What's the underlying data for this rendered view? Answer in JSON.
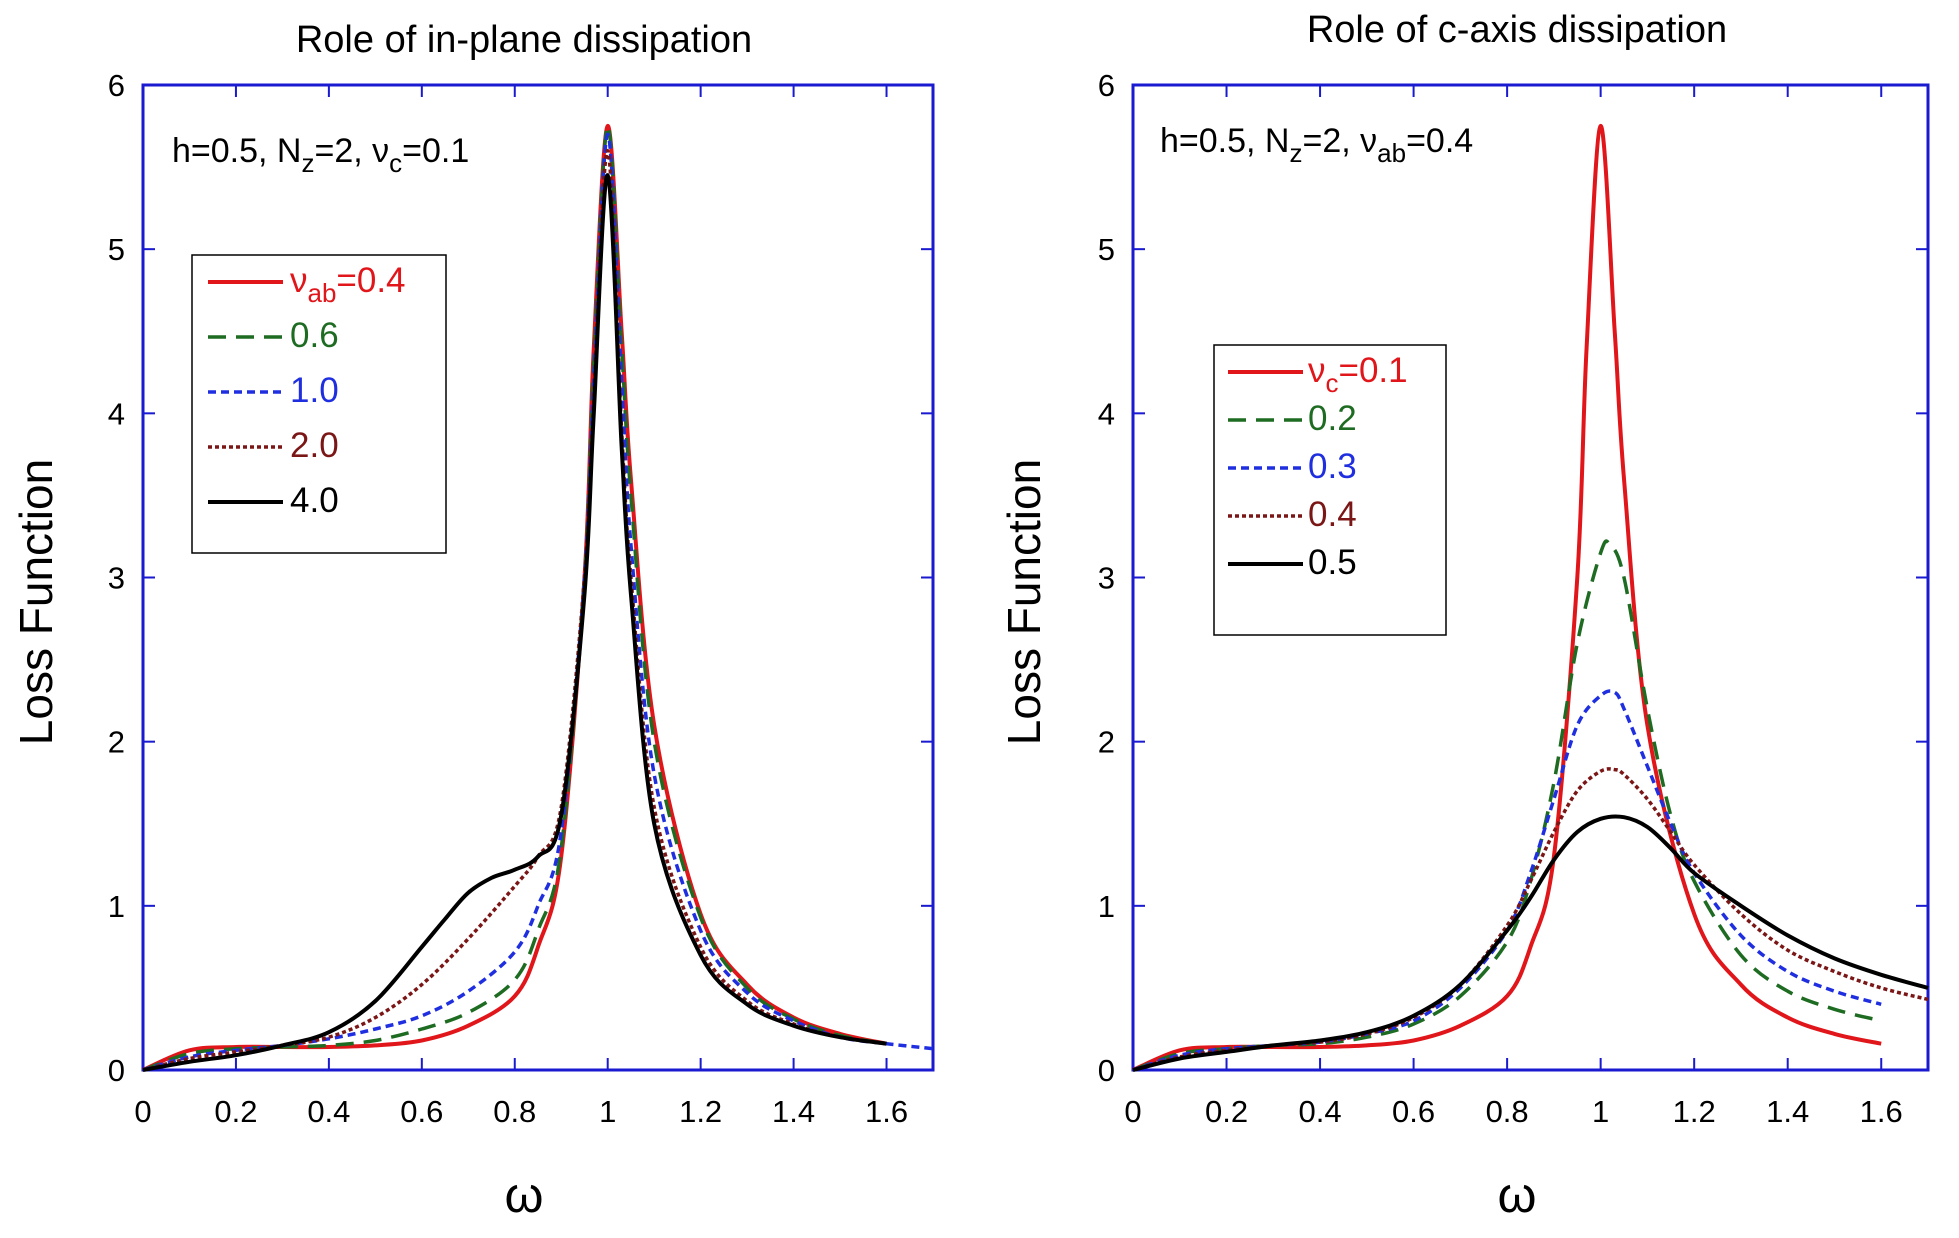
{
  "chart_data": [
    {
      "type": "line",
      "title": "Role of in-plane dissipation",
      "xlabel": "ω",
      "ylabel": "Loss Function",
      "xlim": [
        0,
        1.7
      ],
      "ylim": [
        0,
        6
      ],
      "xticks": [
        "0",
        "0.2",
        "0.4",
        "0.6",
        "0.8",
        "1",
        "1.2",
        "1.4",
        "1.6"
      ],
      "yticks": [
        "0",
        "1",
        "2",
        "3",
        "4",
        "5",
        "6"
      ],
      "annotation": {
        "h": "h=0.5, N",
        "nsub": "z",
        "mid": "=2, ",
        "nu": "ν",
        "nusub": "c",
        "tail": "=0.1"
      },
      "legend_prefix": {
        "nu": "ν",
        "sub": "ab",
        "eq": "="
      },
      "series": [
        {
          "name": "0.4",
          "color": "#e0161b",
          "dash": "solid",
          "x": [
            0,
            0.1,
            0.2,
            0.3,
            0.4,
            0.5,
            0.6,
            0.7,
            0.8,
            0.85,
            0.9,
            0.95,
            0.97,
            1.0,
            1.03,
            1.05,
            1.1,
            1.2,
            1.3,
            1.4,
            1.5,
            1.6
          ],
          "y": [
            0,
            0.12,
            0.14,
            0.14,
            0.14,
            0.15,
            0.18,
            0.27,
            0.45,
            0.75,
            1.3,
            3.0,
            4.4,
            5.75,
            4.5,
            3.6,
            2.1,
            0.95,
            0.52,
            0.32,
            0.22,
            0.16
          ]
        },
        {
          "name": "0.6",
          "color": "#1e6b22",
          "dash": "18 10",
          "x": [
            0,
            0.1,
            0.2,
            0.3,
            0.4,
            0.5,
            0.6,
            0.7,
            0.8,
            0.85,
            0.9,
            0.95,
            0.97,
            1.0,
            1.03,
            1.05,
            1.1,
            1.2,
            1.3,
            1.4,
            1.5,
            1.6
          ],
          "y": [
            0,
            0.1,
            0.13,
            0.14,
            0.15,
            0.18,
            0.25,
            0.35,
            0.55,
            0.85,
            1.35,
            3.0,
            4.3,
            5.75,
            4.4,
            3.5,
            2.0,
            0.93,
            0.5,
            0.31,
            0.21,
            0.16
          ]
        },
        {
          "name": "1.0",
          "color": "#1f2fe0",
          "dash": "8 5",
          "x": [
            0,
            0.1,
            0.2,
            0.3,
            0.4,
            0.5,
            0.6,
            0.7,
            0.8,
            0.85,
            0.9,
            0.95,
            0.97,
            1.0,
            1.03,
            1.05,
            1.1,
            1.2,
            1.3,
            1.4,
            1.5,
            1.6,
            1.7
          ],
          "y": [
            0,
            0.08,
            0.12,
            0.15,
            0.19,
            0.25,
            0.33,
            0.48,
            0.72,
            1.0,
            1.45,
            3.0,
            4.2,
            5.7,
            4.2,
            3.2,
            1.8,
            0.85,
            0.47,
            0.3,
            0.2,
            0.16,
            0.13
          ]
        },
        {
          "name": "2.0",
          "color": "#7b1616",
          "dash": "4 3",
          "x": [
            0,
            0.1,
            0.2,
            0.3,
            0.4,
            0.5,
            0.6,
            0.7,
            0.8,
            0.85,
            0.9,
            0.95,
            0.97,
            1.0,
            1.03,
            1.05,
            1.1,
            1.2,
            1.3,
            1.4,
            1.5,
            1.6
          ],
          "y": [
            0,
            0.07,
            0.11,
            0.15,
            0.2,
            0.32,
            0.52,
            0.8,
            1.12,
            1.3,
            1.6,
            3.0,
            4.1,
            5.6,
            3.9,
            3.0,
            1.6,
            0.75,
            0.42,
            0.28,
            0.2,
            0.16
          ]
        },
        {
          "name": "4.0",
          "color": "#000000",
          "dash": "solid",
          "x": [
            0,
            0.1,
            0.2,
            0.3,
            0.4,
            0.5,
            0.6,
            0.65,
            0.7,
            0.75,
            0.8,
            0.85,
            0.9,
            0.95,
            0.97,
            1.0,
            1.03,
            1.05,
            1.1,
            1.2,
            1.3,
            1.4,
            1.5,
            1.6
          ],
          "y": [
            0,
            0.05,
            0.09,
            0.15,
            0.23,
            0.42,
            0.75,
            0.92,
            1.08,
            1.17,
            1.22,
            1.3,
            1.55,
            2.9,
            4.0,
            5.45,
            3.8,
            2.9,
            1.5,
            0.7,
            0.4,
            0.27,
            0.2,
            0.16
          ]
        }
      ]
    },
    {
      "type": "line",
      "title": "Role of c-axis dissipation",
      "xlabel": "ω",
      "ylabel": "Loss Function",
      "xlim": [
        0,
        1.7
      ],
      "ylim": [
        0,
        6
      ],
      "xticks": [
        "0",
        "0.2",
        "0.4",
        "0.6",
        "0.8",
        "1",
        "1.2",
        "1.4",
        "1.6"
      ],
      "yticks": [
        "0",
        "1",
        "2",
        "3",
        "4",
        "5",
        "6"
      ],
      "annotation": {
        "h": "h=0.5, N",
        "nsub": "z",
        "mid": "=2, ",
        "nu": "ν",
        "nusub": "ab",
        "tail": "=0.4"
      },
      "legend_prefix": {
        "nu": "ν",
        "sub": "c",
        "eq": "="
      },
      "series": [
        {
          "name": "0.1",
          "color": "#e0161b",
          "dash": "solid",
          "x": [
            0,
            0.1,
            0.2,
            0.3,
            0.4,
            0.5,
            0.6,
            0.7,
            0.8,
            0.85,
            0.9,
            0.95,
            0.97,
            1.0,
            1.03,
            1.05,
            1.1,
            1.2,
            1.3,
            1.4,
            1.5,
            1.6
          ],
          "y": [
            0,
            0.12,
            0.14,
            0.14,
            0.14,
            0.15,
            0.18,
            0.27,
            0.45,
            0.75,
            1.3,
            3.0,
            4.4,
            5.75,
            4.5,
            3.6,
            2.1,
            0.95,
            0.52,
            0.32,
            0.22,
            0.16
          ]
        },
        {
          "name": "0.2",
          "color": "#1e6b22",
          "dash": "18 10",
          "x": [
            0,
            0.1,
            0.2,
            0.3,
            0.4,
            0.5,
            0.6,
            0.7,
            0.8,
            0.85,
            0.9,
            0.95,
            1.0,
            1.02,
            1.05,
            1.1,
            1.15,
            1.2,
            1.3,
            1.4,
            1.5,
            1.6
          ],
          "y": [
            0,
            0.1,
            0.13,
            0.15,
            0.16,
            0.2,
            0.28,
            0.45,
            0.78,
            1.15,
            1.75,
            2.6,
            3.15,
            3.2,
            3.0,
            2.2,
            1.55,
            1.15,
            0.7,
            0.48,
            0.37,
            0.3
          ]
        },
        {
          "name": "0.3",
          "color": "#1f2fe0",
          "dash": "8 5",
          "x": [
            0,
            0.1,
            0.2,
            0.3,
            0.4,
            0.5,
            0.6,
            0.7,
            0.8,
            0.85,
            0.9,
            0.95,
            1.0,
            1.03,
            1.05,
            1.1,
            1.15,
            1.2,
            1.3,
            1.4,
            1.5,
            1.6
          ],
          "y": [
            0,
            0.09,
            0.13,
            0.15,
            0.17,
            0.22,
            0.3,
            0.5,
            0.85,
            1.2,
            1.65,
            2.1,
            2.28,
            2.3,
            2.2,
            1.85,
            1.5,
            1.2,
            0.82,
            0.6,
            0.48,
            0.4
          ]
        },
        {
          "name": "0.4",
          "color": "#7b1616",
          "dash": "4 3",
          "x": [
            0,
            0.1,
            0.2,
            0.3,
            0.4,
            0.5,
            0.6,
            0.7,
            0.8,
            0.85,
            0.9,
            0.95,
            1.0,
            1.03,
            1.05,
            1.1,
            1.15,
            1.2,
            1.3,
            1.4,
            1.5,
            1.6,
            1.7
          ],
          "y": [
            0,
            0.08,
            0.12,
            0.15,
            0.17,
            0.22,
            0.32,
            0.52,
            0.88,
            1.15,
            1.45,
            1.7,
            1.82,
            1.83,
            1.8,
            1.65,
            1.45,
            1.25,
            0.95,
            0.73,
            0.6,
            0.5,
            0.43
          ]
        },
        {
          "name": "0.5",
          "color": "#000000",
          "dash": "solid",
          "x": [
            0,
            0.1,
            0.2,
            0.3,
            0.4,
            0.5,
            0.6,
            0.7,
            0.8,
            0.85,
            0.9,
            0.95,
            1.0,
            1.05,
            1.1,
            1.15,
            1.2,
            1.3,
            1.4,
            1.5,
            1.6,
            1.7
          ],
          "y": [
            0,
            0.07,
            0.11,
            0.15,
            0.18,
            0.23,
            0.33,
            0.52,
            0.85,
            1.05,
            1.28,
            1.45,
            1.53,
            1.54,
            1.48,
            1.35,
            1.2,
            1.0,
            0.82,
            0.68,
            0.58,
            0.5
          ]
        }
      ]
    }
  ]
}
